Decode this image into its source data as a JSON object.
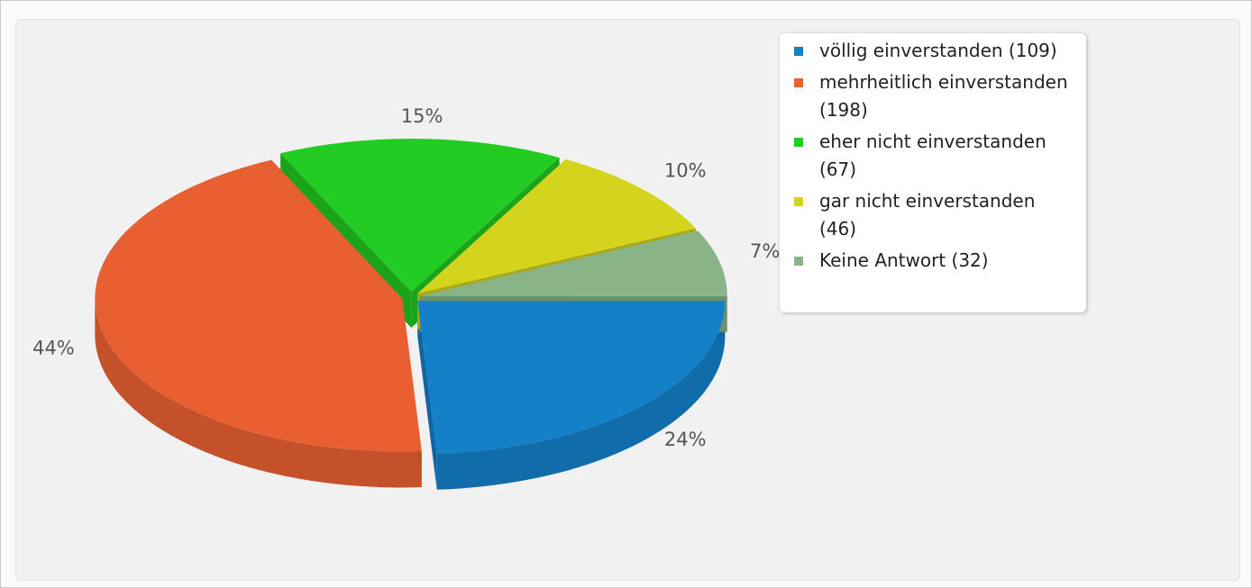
{
  "chart_data": {
    "type": "pie",
    "categories": [
      "völlig einverstanden (109)",
      "mehrheitlich einverstanden (198)",
      "eher nicht einverstanden (67)",
      "gar nicht einverstanden (46)",
      "Keine Antwort (32)"
    ],
    "values": [
      24,
      44,
      15,
      10,
      7
    ],
    "value_labels": [
      "24%",
      "44%",
      "15%",
      "10%",
      "7%"
    ],
    "colors": [
      "#1380c8",
      "#e85f32",
      "#22cc22",
      "#d4d41e",
      "#88b488"
    ],
    "legend": "top-right"
  }
}
